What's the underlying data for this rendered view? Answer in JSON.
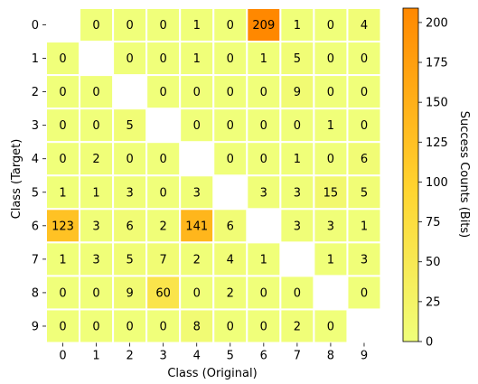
{
  "chart_data": {
    "type": "heatmap",
    "xlabel": "Class (Original)",
    "ylabel": "Class (Target)",
    "x_categories": [
      "0",
      "1",
      "2",
      "3",
      "4",
      "5",
      "6",
      "7",
      "8",
      "9"
    ],
    "y_categories": [
      "0",
      "1",
      "2",
      "3",
      "4",
      "5",
      "6",
      "7",
      "8",
      "9"
    ],
    "values": [
      [
        null,
        0,
        0,
        0,
        1,
        0,
        209,
        1,
        0,
        4
      ],
      [
        0,
        null,
        0,
        0,
        1,
        0,
        1,
        5,
        0,
        0
      ],
      [
        0,
        0,
        null,
        0,
        0,
        0,
        0,
        9,
        0,
        0
      ],
      [
        0,
        0,
        5,
        null,
        0,
        0,
        0,
        0,
        1,
        0
      ],
      [
        0,
        2,
        0,
        0,
        null,
        0,
        0,
        1,
        0,
        6
      ],
      [
        1,
        1,
        3,
        0,
        3,
        null,
        3,
        3,
        15,
        5
      ],
      [
        123,
        3,
        6,
        2,
        141,
        6,
        null,
        3,
        3,
        1
      ],
      [
        1,
        3,
        5,
        7,
        2,
        4,
        1,
        null,
        1,
        3
      ],
      [
        0,
        0,
        9,
        60,
        0,
        2,
        0,
        0,
        null,
        0
      ],
      [
        0,
        0,
        0,
        0,
        8,
        0,
        0,
        2,
        0,
        null
      ]
    ],
    "colorbar": {
      "label": "Success Counts (Bits)",
      "min": 0,
      "max": 209,
      "ticks": [
        0,
        25,
        50,
        75,
        100,
        125,
        150,
        175,
        200
      ],
      "colors": {
        "low": "#f0ff7a",
        "mid": "#ffd530",
        "high": "#ff8800"
      }
    },
    "grid": false,
    "cell_border_color": "#ffffff"
  }
}
